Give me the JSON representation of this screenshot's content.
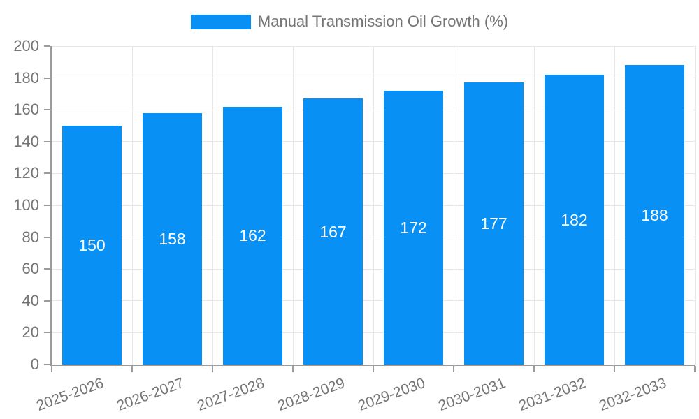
{
  "chart_data": {
    "type": "bar",
    "title": "Manual Transmission Oil Growth (%)",
    "categories": [
      "2025-2026",
      "2026-2027",
      "2027-2028",
      "2028-2029",
      "2029-2030",
      "2030-2031",
      "2031-2032",
      "2032-2033"
    ],
    "values": [
      150,
      158,
      162,
      167,
      172,
      177,
      182,
      188
    ],
    "series": [
      {
        "name": "Manual Transmission Oil Growth (%)",
        "values": [
          150,
          158,
          162,
          167,
          172,
          177,
          182,
          188
        ]
      }
    ],
    "xlabel": "",
    "ylabel": "",
    "ylim": [
      0,
      200
    ],
    "ytick_step": 20,
    "yticks": [
      0,
      20,
      40,
      60,
      80,
      100,
      120,
      140,
      160,
      180,
      200
    ],
    "grid": true,
    "legend_position": "top-center",
    "bar_label_position": "inside-middle"
  },
  "colors": {
    "bar": "#0890f5",
    "axis": "#9b9b9b",
    "grid": "#e7e7e7",
    "tick_text": "#757575",
    "legend_text": "#757575",
    "value_label": "#ffffff",
    "background": "#ffffff"
  }
}
